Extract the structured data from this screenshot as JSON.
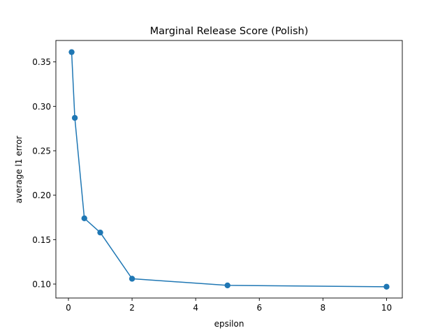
{
  "chart_data": {
    "type": "line",
    "title": "Marginal Release Score (Polish)",
    "xlabel": "epsilon",
    "ylabel": "average l1 error",
    "xlim": [
      -0.395,
      10.495
    ],
    "ylim": [
      0.0843,
      0.3741
    ],
    "xticks": [
      0,
      2,
      4,
      6,
      8,
      10
    ],
    "xtick_labels": [
      "0",
      "2",
      "4",
      "6",
      "8",
      "10"
    ],
    "yticks": [
      0.1,
      0.15,
      0.2,
      0.25,
      0.3,
      0.35
    ],
    "ytick_labels": [
      "0.10",
      "0.15",
      "0.20",
      "0.25",
      "0.30",
      "0.35"
    ],
    "grid": false,
    "legend": "none",
    "series": [
      {
        "x": [
          0.1,
          0.2,
          0.5,
          1,
          2,
          5,
          10
        ],
        "y": [
          0.361,
          0.287,
          0.174,
          0.158,
          0.106,
          0.0985,
          0.097
        ],
        "color": "#1f77b4",
        "marker": "circle"
      }
    ]
  }
}
